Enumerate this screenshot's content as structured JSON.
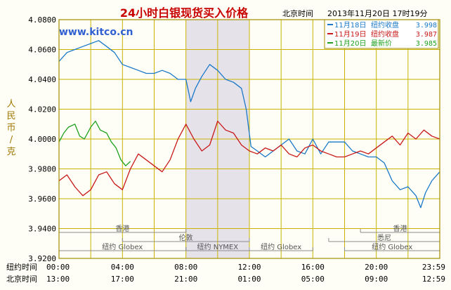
{
  "title": "24小时白银现货买入价格",
  "header": {
    "tz_label": "北京时间",
    "datetime": "2013年11月20日 17时19分"
  },
  "watermark": "www.kitco.cn",
  "y_axis_label_chars": [
    "人",
    "民",
    "币",
    "/",
    "克"
  ],
  "legend": [
    {
      "date": "11月18日",
      "label": "纽约收盘",
      "value": "3.998",
      "color": "#1a78c8"
    },
    {
      "date": "11月19日",
      "label": "纽约收盘",
      "value": "3.987",
      "color": "#c81818"
    },
    {
      "date": "11月20日",
      "label": "最新价",
      "value": "3.985",
      "color": "#1ea01e"
    }
  ],
  "time_rows": [
    {
      "label": "纽约时间",
      "ticks": [
        "00:00",
        "04:00",
        "08:00",
        "12:00",
        "16:00",
        "20:00",
        "23:59"
      ]
    },
    {
      "label": "北京时间",
      "ticks": [
        "13:00",
        "17:00",
        "21:00",
        "01:00",
        "05:00",
        "09:00",
        "12:59"
      ]
    }
  ],
  "markets": [
    {
      "name": "香港",
      "start": 0,
      "end": 8,
      "row": 0
    },
    {
      "name": "香港",
      "start": 19,
      "end": 24,
      "row": 0
    },
    {
      "name": "伦敦",
      "start": 4,
      "end": 12,
      "row": 1
    },
    {
      "name": "悉尼",
      "start": 17,
      "end": 24,
      "row": 1
    },
    {
      "name": "纽约 Globex",
      "start": 0,
      "end": 8,
      "row": 2
    },
    {
      "name": "纽约 NYMEX",
      "start": 8,
      "end": 12,
      "row": 2
    },
    {
      "name": "纽约 Globex",
      "start": 12,
      "end": 16,
      "row": 2
    },
    {
      "name": "纽约 Globex",
      "start": 18,
      "end": 24,
      "row": 2
    }
  ],
  "colors": {
    "background": "#fefef6",
    "grid": "#c8b400",
    "frame": "#a08c00",
    "shade": "#e6e2ea",
    "title": "#c80000",
    "text": "#000000",
    "watermark": "#2f5fd0",
    "axis_label": "#a07800"
  },
  "chart_data": {
    "type": "line",
    "x_unit": "New York hour",
    "xlim": [
      0,
      24
    ],
    "ylim": [
      3.92,
      4.08
    ],
    "y_ticks": [
      "3.9200",
      "3.9400",
      "3.9600",
      "3.9800",
      "4.0000",
      "4.0200",
      "4.0400",
      "4.0600",
      "4.0800"
    ],
    "x_ticks": [
      0,
      4,
      8,
      12,
      16,
      20,
      24
    ],
    "shaded_range": [
      8,
      12
    ],
    "grid": true,
    "series": [
      {
        "name": "11月18日",
        "color": "#1a78c8",
        "points": [
          [
            0,
            4.052
          ],
          [
            0.5,
            4.058
          ],
          [
            1,
            4.06
          ],
          [
            1.5,
            4.062
          ],
          [
            2,
            4.064
          ],
          [
            2.5,
            4.066
          ],
          [
            3,
            4.062
          ],
          [
            3.5,
            4.058
          ],
          [
            4,
            4.05
          ],
          [
            4.5,
            4.048
          ],
          [
            5,
            4.046
          ],
          [
            5.5,
            4.044
          ],
          [
            6,
            4.044
          ],
          [
            6.5,
            4.046
          ],
          [
            7,
            4.044
          ],
          [
            7.5,
            4.04
          ],
          [
            8,
            4.04
          ],
          [
            8.3,
            4.025
          ],
          [
            8.6,
            4.034
          ],
          [
            9,
            4.042
          ],
          [
            9.5,
            4.05
          ],
          [
            10,
            4.046
          ],
          [
            10.5,
            4.04
          ],
          [
            11,
            4.038
          ],
          [
            11.5,
            4.034
          ],
          [
            11.8,
            4.02
          ],
          [
            12.1,
            3.995
          ],
          [
            12.5,
            3.992
          ],
          [
            13,
            3.988
          ],
          [
            13.5,
            3.992
          ],
          [
            14,
            3.996
          ],
          [
            14.5,
            4.0
          ],
          [
            15,
            3.992
          ],
          [
            15.5,
            3.99
          ],
          [
            16,
            4.0
          ],
          [
            16.5,
            3.99
          ],
          [
            17,
            3.998
          ],
          [
            18,
            3.998
          ],
          [
            18.5,
            3.992
          ],
          [
            19,
            3.99
          ],
          [
            19.5,
            3.988
          ],
          [
            20,
            3.988
          ],
          [
            20.5,
            3.984
          ],
          [
            21,
            3.972
          ],
          [
            21.5,
            3.966
          ],
          [
            22,
            3.968
          ],
          [
            22.5,
            3.962
          ],
          [
            22.8,
            3.954
          ],
          [
            23.1,
            3.964
          ],
          [
            23.5,
            3.972
          ],
          [
            24,
            3.978
          ]
        ]
      },
      {
        "name": "11月19日",
        "color": "#c81818",
        "points": [
          [
            0,
            3.972
          ],
          [
            0.5,
            3.976
          ],
          [
            1,
            3.968
          ],
          [
            1.5,
            3.962
          ],
          [
            2,
            3.966
          ],
          [
            2.5,
            3.976
          ],
          [
            3,
            3.978
          ],
          [
            3.5,
            3.97
          ],
          [
            4,
            3.966
          ],
          [
            4.5,
            3.98
          ],
          [
            5,
            3.99
          ],
          [
            5.5,
            3.986
          ],
          [
            6,
            3.982
          ],
          [
            6.5,
            3.978
          ],
          [
            7,
            3.986
          ],
          [
            7.5,
            4.0
          ],
          [
            8,
            4.01
          ],
          [
            8.5,
            4.0
          ],
          [
            9,
            3.992
          ],
          [
            9.5,
            3.996
          ],
          [
            10,
            4.012
          ],
          [
            10.5,
            4.006
          ],
          [
            11,
            4.004
          ],
          [
            11.5,
            3.996
          ],
          [
            12,
            3.992
          ],
          [
            12.5,
            3.99
          ],
          [
            13,
            3.994
          ],
          [
            13.5,
            3.992
          ],
          [
            14,
            3.996
          ],
          [
            14.5,
            3.99
          ],
          [
            15,
            3.988
          ],
          [
            15.5,
            3.994
          ],
          [
            16,
            3.996
          ],
          [
            16.5,
            3.992
          ],
          [
            17,
            3.99
          ],
          [
            17.5,
            3.988
          ],
          [
            18,
            3.988
          ],
          [
            18.5,
            3.99
          ],
          [
            19,
            3.992
          ],
          [
            19.5,
            3.99
          ],
          [
            20,
            3.994
          ],
          [
            20.5,
            3.998
          ],
          [
            21,
            4.002
          ],
          [
            21.5,
            3.996
          ],
          [
            22,
            4.004
          ],
          [
            22.5,
            4.0
          ],
          [
            23,
            4.006
          ],
          [
            23.5,
            4.002
          ],
          [
            24,
            4.0
          ]
        ]
      },
      {
        "name": "11月20日",
        "color": "#1ea01e",
        "points": [
          [
            0,
            3.998
          ],
          [
            0.3,
            4.004
          ],
          [
            0.6,
            4.008
          ],
          [
            1,
            4.01
          ],
          [
            1.3,
            4.002
          ],
          [
            1.6,
            4.0
          ],
          [
            2,
            4.008
          ],
          [
            2.3,
            4.012
          ],
          [
            2.6,
            4.006
          ],
          [
            3,
            4.004
          ],
          [
            3.3,
            3.998
          ],
          [
            3.6,
            3.994
          ],
          [
            3.9,
            3.986
          ],
          [
            4.2,
            3.982
          ],
          [
            4.5,
            3.985
          ]
        ]
      }
    ]
  }
}
